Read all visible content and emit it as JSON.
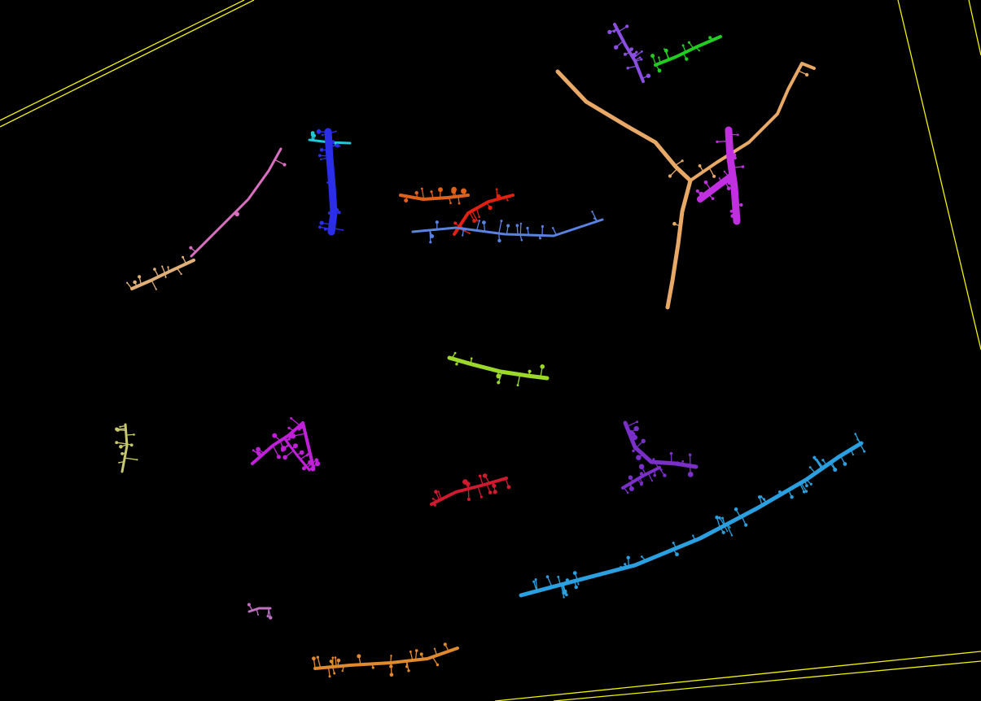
{
  "viewport": {
    "background": "#000000",
    "bounding_box_color": "#f2f20a"
  },
  "segments": [
    {
      "name": "purple-dendrite-top",
      "color": "#8a4fe0"
    },
    {
      "name": "green-dendrite-top",
      "color": "#22cc22"
    },
    {
      "name": "tan-branching-dendrite",
      "color": "#e8a866"
    },
    {
      "name": "magenta-dendrite-right",
      "color": "#c030e0"
    },
    {
      "name": "pink-dendrite",
      "color": "#d96fc0"
    },
    {
      "name": "tan-dendrite-left",
      "color": "#e0b078"
    },
    {
      "name": "cyan-fragment",
      "color": "#20c8d8"
    },
    {
      "name": "blue-dendrite",
      "color": "#2b2ee8"
    },
    {
      "name": "orange-dendrite",
      "color": "#e0621a"
    },
    {
      "name": "red-dendrite-top",
      "color": "#e02010"
    },
    {
      "name": "cornflower-dendrite",
      "color": "#5a82e0"
    },
    {
      "name": "lime-dendrite",
      "color": "#9cd82a"
    },
    {
      "name": "khaki-dendrite",
      "color": "#c8c870"
    },
    {
      "name": "magenta-cluster-left",
      "color": "#c020d8"
    },
    {
      "name": "crimson-dendrite",
      "color": "#d01a30"
    },
    {
      "name": "violet-cluster-right",
      "color": "#7a30c8"
    },
    {
      "name": "skyblue-dendrite",
      "color": "#2aa0e0"
    },
    {
      "name": "orchid-fragment",
      "color": "#c070c0"
    },
    {
      "name": "orange-dendrite-bottom",
      "color": "#e08a30"
    }
  ]
}
